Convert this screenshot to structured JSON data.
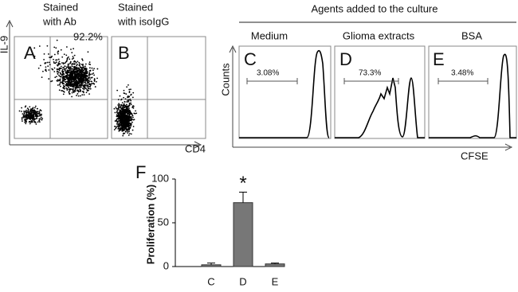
{
  "panels": {
    "a_letter": "A",
    "a_caption_1": "Stained",
    "a_caption_2": "with Ab",
    "a_percent": "92.2%",
    "b_letter": "B",
    "b_caption_1": "Stained",
    "b_caption_2": "with isoIgG",
    "flow_y_label": "IL-9",
    "flow_x_label": "CD4",
    "header": "Agents added to the culture",
    "c_letter": "C",
    "c_condition": "Medium",
    "c_percent": "3.08%",
    "d_letter": "D",
    "d_condition": "Glioma extracts",
    "d_percent": "73.3%",
    "e_letter": "E",
    "e_condition": "BSA",
    "e_percent": "3.48%",
    "hist_y_label": "Counts",
    "hist_x_label": "CFSE"
  },
  "chart_data": {
    "type": "bar",
    "panel_label": "F",
    "ylabel": "Proliferation (%)",
    "categories": [
      "C",
      "D",
      "E"
    ],
    "values": [
      2,
      73,
      3
    ],
    "errors": [
      2,
      12,
      1
    ],
    "color": "#777777",
    "annotation": "*",
    "ylim": [
      0,
      100
    ],
    "yticks": [
      0,
      50,
      100
    ]
  }
}
